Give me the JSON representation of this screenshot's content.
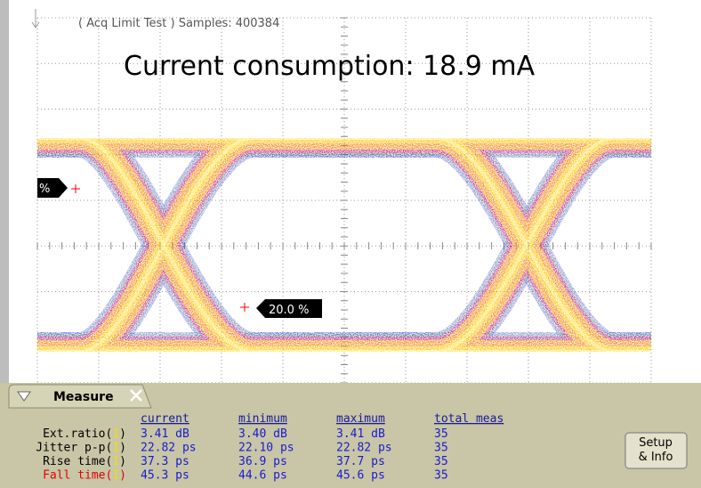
{
  "header": {
    "status": "( Acq Limit Test )  Samples: 400384"
  },
  "overlay": {
    "title": "Current consumption: 18.9 mA"
  },
  "markers": [
    "%",
    "20.0 %"
  ],
  "measure": {
    "title": "Measure",
    "columns": [
      "current",
      "minimum",
      "maximum",
      "total meas"
    ],
    "rows": [
      {
        "label": "Ext.ratio",
        "source": [
          "(",
          "1",
          ")"
        ],
        "cells": [
          "3.41 dB",
          "3.40 dB",
          "3.41 dB",
          "35"
        ]
      },
      {
        "label": "Jitter p-p",
        "source": [
          "(",
          "1",
          ")"
        ],
        "cells": [
          "22.82 ps",
          "22.10 ps",
          "22.82 ps",
          "35"
        ]
      },
      {
        "label": "Rise time",
        "source": [
          "(",
          "1",
          ")"
        ],
        "cells": [
          "37.3 ps",
          "36.9 ps",
          "37.7 ps",
          "35"
        ]
      },
      {
        "label": "Fall time",
        "source": [
          "(",
          "1",
          ")"
        ],
        "cells": [
          "45.3 ps",
          "44.6 ps",
          "45.6 ps",
          "35"
        ]
      }
    ],
    "button": [
      "Setup",
      "& Info"
    ]
  }
}
